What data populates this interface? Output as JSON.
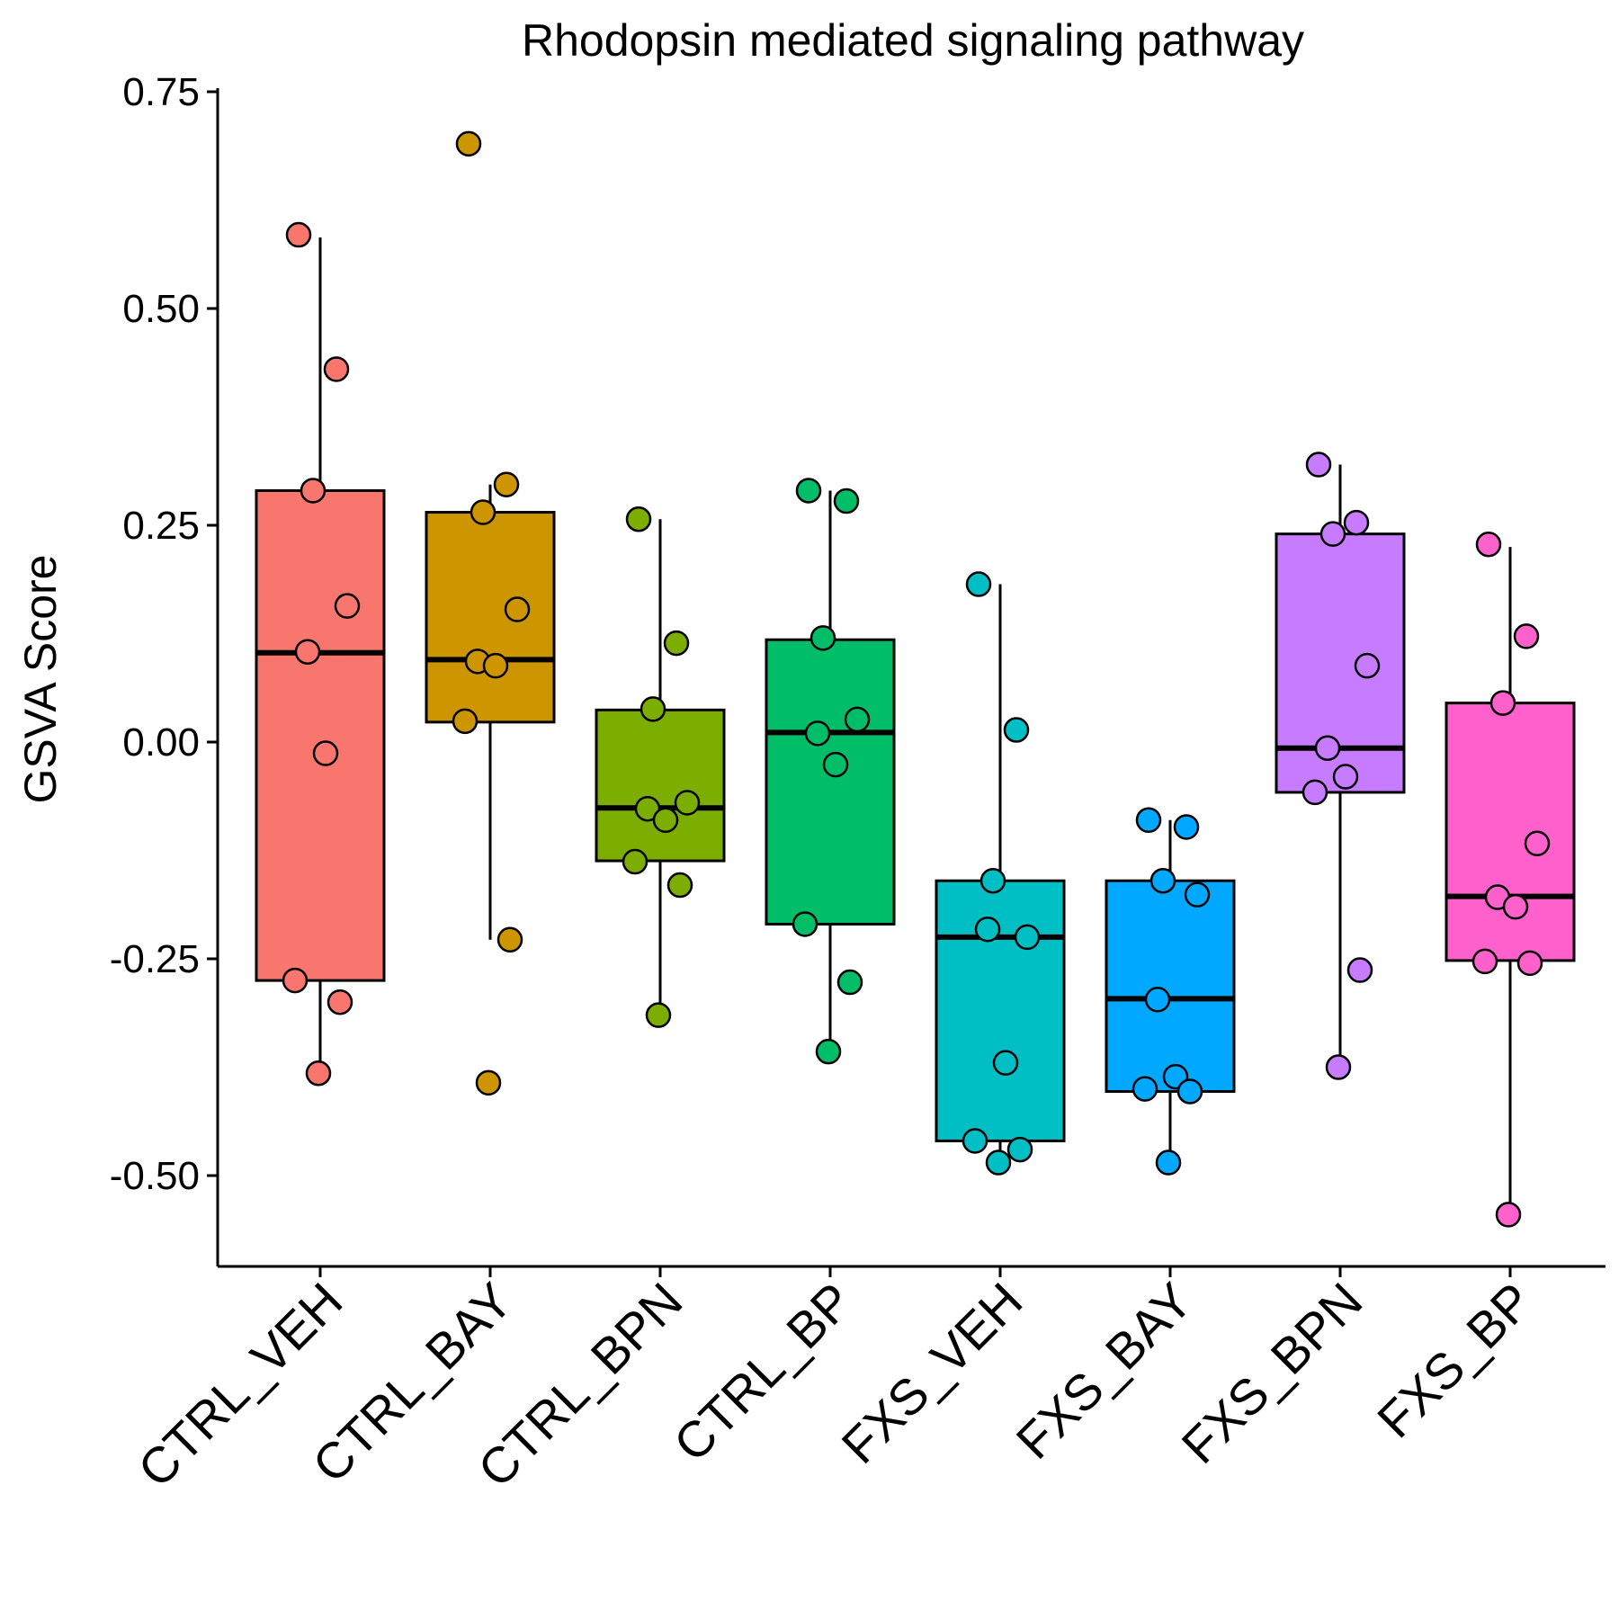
{
  "chart_data": {
    "type": "box",
    "title": "Rhodopsin mediated signaling pathway",
    "xlabel": "",
    "ylabel": "GSVA Score",
    "ylim": [
      -0.6,
      0.755
    ],
    "yticks": [
      0.75,
      0.5,
      0.25,
      0.0,
      -0.25,
      -0.5
    ],
    "ytick_labels": [
      "0.75",
      "0.50",
      "0.25",
      "0.00",
      "-0.25",
      "-0.50"
    ],
    "grid": false,
    "legend": "none",
    "categories": [
      "CTRL_VEH",
      "CTRL_BAY",
      "CTRL_BPN",
      "CTRL_BP",
      "FXS_VEH",
      "FXS_BAY",
      "FXS_BPN",
      "FXS_BP"
    ],
    "groups": [
      {
        "name": "CTRL_VEH",
        "color": "#F8766D",
        "box": {
          "lower_whisker": -0.38,
          "q1": -0.275,
          "median": 0.103,
          "q3": 0.29,
          "upper_whisker": 0.582
        },
        "points": [
          0.585,
          0.43,
          0.29,
          0.157,
          0.104,
          -0.013,
          -0.275,
          -0.3,
          -0.382
        ]
      },
      {
        "name": "CTRL_BAY",
        "color": "#CD9600",
        "box": {
          "lower_whisker": -0.228,
          "q1": 0.023,
          "median": 0.095,
          "q3": 0.265,
          "upper_whisker": 0.297
        },
        "points": [
          0.69,
          0.297,
          0.265,
          0.153,
          0.093,
          0.088,
          0.024,
          -0.228,
          -0.393
        ]
      },
      {
        "name": "CTRL_BPN",
        "color": "#7CAE00",
        "box": {
          "lower_whisker": -0.315,
          "q1": -0.137,
          "median": -0.076,
          "q3": 0.037,
          "upper_whisker": 0.257
        },
        "points": [
          0.257,
          0.114,
          0.038,
          -0.07,
          -0.077,
          -0.09,
          -0.138,
          -0.165,
          -0.315
        ]
      },
      {
        "name": "CTRL_BP",
        "color": "#00BE67",
        "box": {
          "lower_whisker": -0.357,
          "q1": -0.21,
          "median": 0.011,
          "q3": 0.118,
          "upper_whisker": 0.29
        },
        "points": [
          0.29,
          0.278,
          0.12,
          0.026,
          0.01,
          -0.026,
          -0.21,
          -0.277,
          -0.357
        ]
      },
      {
        "name": "FXS_VEH",
        "color": "#00BFC4",
        "box": {
          "lower_whisker": -0.485,
          "q1": -0.46,
          "median": -0.225,
          "q3": -0.16,
          "upper_whisker": 0.182
        },
        "points": [
          0.182,
          0.014,
          -0.16,
          -0.225,
          -0.216,
          -0.37,
          -0.46,
          -0.47,
          -0.485
        ]
      },
      {
        "name": "FXS_BAY",
        "color": "#00A9FF",
        "box": {
          "lower_whisker": -0.485,
          "q1": -0.403,
          "median": -0.296,
          "q3": -0.16,
          "upper_whisker": -0.09
        },
        "points": [
          -0.09,
          -0.098,
          -0.16,
          -0.176,
          -0.297,
          -0.386,
          -0.4,
          -0.403,
          -0.485
        ]
      },
      {
        "name": "FXS_BPN",
        "color": "#C77CFF",
        "box": {
          "lower_whisker": -0.375,
          "q1": -0.058,
          "median": -0.007,
          "q3": 0.24,
          "upper_whisker": 0.32
        },
        "points": [
          0.32,
          0.253,
          0.24,
          0.088,
          -0.007,
          -0.04,
          -0.058,
          -0.263,
          -0.375
        ]
      },
      {
        "name": "FXS_BP",
        "color": "#FF61CC",
        "box": {
          "lower_whisker": -0.545,
          "q1": -0.252,
          "median": -0.178,
          "q3": 0.045,
          "upper_whisker": 0.225
        },
        "points": [
          0.228,
          0.122,
          0.045,
          -0.117,
          -0.179,
          -0.19,
          -0.253,
          -0.255,
          -0.545
        ]
      }
    ]
  }
}
